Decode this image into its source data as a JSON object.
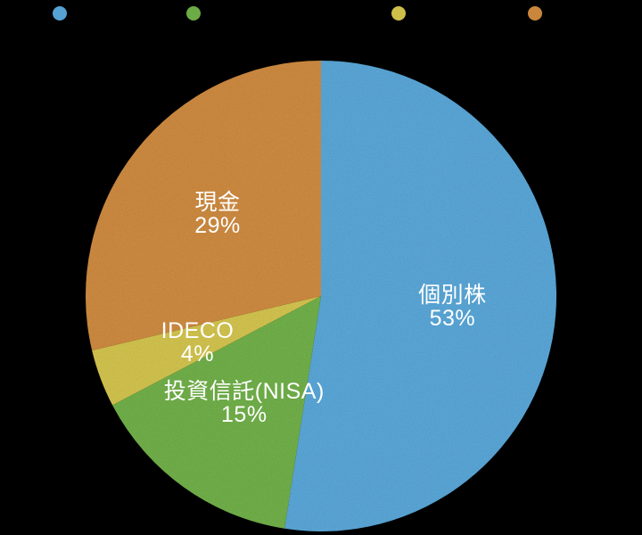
{
  "chart_data": {
    "type": "pie",
    "labels": [
      "個別株",
      "投資信託(NISA)",
      "IDECO",
      "現金"
    ],
    "values": [
      53,
      15,
      4,
      29
    ],
    "display_values": [
      "53%",
      "15%",
      "4%",
      "29%"
    ],
    "colors": [
      "#55A2D3",
      "#6CAB45",
      "#CEBF4A",
      "#C9863C"
    ],
    "label_text_color": "#FFFFFF",
    "background_color": "#000000",
    "legend_position": "top",
    "start_angle_deg": 0,
    "direction": "clockwise"
  },
  "legend": {
    "text_color": "#000000",
    "items": [
      {
        "label": "個別株",
        "color": "#55A2D3"
      },
      {
        "label": "投資信託(NISA)",
        "color": "#6CAB45"
      },
      {
        "label": "IDECO",
        "color": "#CEBF4A"
      },
      {
        "label": "現金",
        "color": "#C9863C"
      }
    ]
  }
}
